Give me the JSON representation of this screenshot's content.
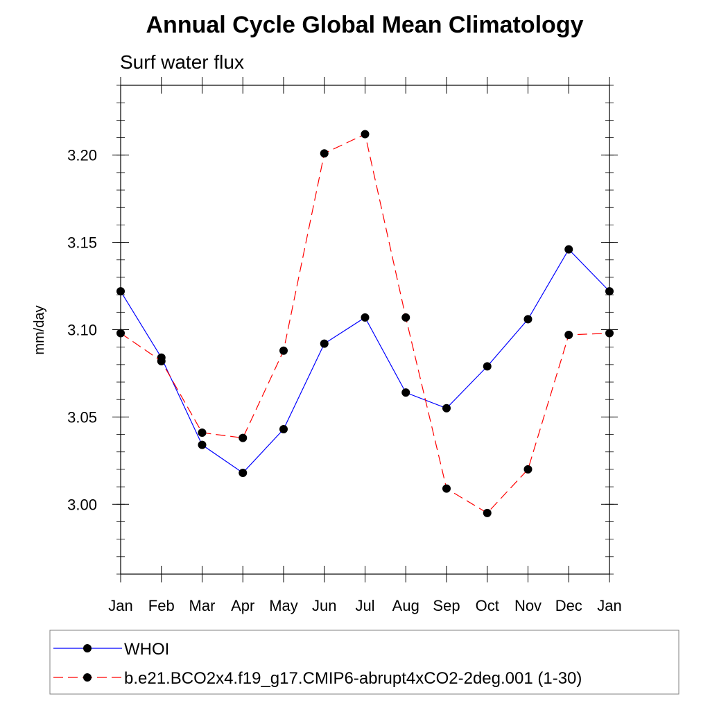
{
  "chart_data": {
    "type": "line",
    "title": "Annual Cycle Global Mean Climatology",
    "subtitle": "Surf water flux",
    "xlabel": "",
    "ylabel": "mm/day",
    "categories": [
      "Jan",
      "Feb",
      "Mar",
      "Apr",
      "May",
      "Jun",
      "Jul",
      "Aug",
      "Sep",
      "Oct",
      "Nov",
      "Dec",
      "Jan"
    ],
    "ylim": [
      2.96,
      3.24
    ],
    "yticks": [
      "3.00",
      "3.05",
      "3.10",
      "3.15",
      "3.20"
    ],
    "ytick_values": [
      3.0,
      3.05,
      3.1,
      3.15,
      3.2
    ],
    "legend_position": "bottom",
    "series": [
      {
        "name": "WHOI",
        "color": "#0000ff",
        "style": "solid",
        "values": [
          3.122,
          3.084,
          3.034,
          3.018,
          3.043,
          3.092,
          3.107,
          3.064,
          3.055,
          3.079,
          3.106,
          3.146,
          3.122
        ]
      },
      {
        "name": "b.e21.BCO2x4.f19_g17.CMIP6-abrupt4xCO2-2deg.001 (1-30)",
        "color": "#ff0000",
        "style": "dashed",
        "values": [
          3.098,
          3.082,
          3.041,
          3.038,
          3.088,
          3.201,
          3.212,
          3.107,
          3.009,
          2.995,
          3.02,
          3.097,
          3.098
        ]
      }
    ]
  }
}
